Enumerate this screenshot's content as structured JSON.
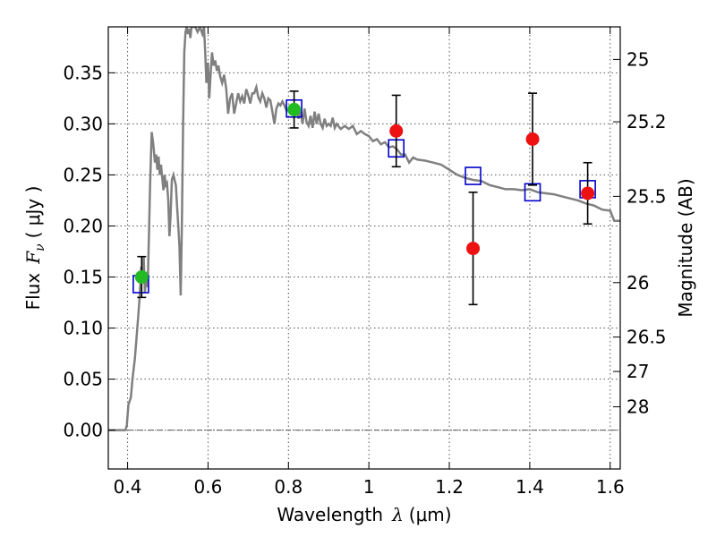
{
  "chart_data": {
    "type": "line",
    "xlabel_main": "Wavelength",
    "xlabel_symbol": "λ",
    "xlabel_unit": "(μm)",
    "ylabel_main": "Flux",
    "ylabel_symbol": "F",
    "ylabel_subscript": "ν",
    "ylabel_unit": "( μJy )",
    "ylabel_right": "Magnitude (AB)",
    "xlim": [
      0.352,
      1.625
    ],
    "ylim": [
      -0.038,
      0.395
    ],
    "x_ticks": [
      {
        "value": 0.4,
        "label": "0.4"
      },
      {
        "value": 0.6,
        "label": "0.6"
      },
      {
        "value": 0.8,
        "label": "0.8"
      },
      {
        "value": 1.0,
        "label": "1"
      },
      {
        "value": 1.2,
        "label": "1.2"
      },
      {
        "value": 1.4,
        "label": "1.4"
      },
      {
        "value": 1.6,
        "label": "1.6"
      }
    ],
    "y_ticks": [
      {
        "value": 0.0,
        "label": "0.00"
      },
      {
        "value": 0.05,
        "label": "0.05"
      },
      {
        "value": 0.1,
        "label": "0.10"
      },
      {
        "value": 0.15,
        "label": "0.15"
      },
      {
        "value": 0.2,
        "label": "0.20"
      },
      {
        "value": 0.25,
        "label": "0.25"
      },
      {
        "value": 0.3,
        "label": "0.30"
      },
      {
        "value": 0.35,
        "label": "0.35"
      }
    ],
    "right_ticks": [
      {
        "flux": 0.3631,
        "label": "25"
      },
      {
        "flux": 0.302,
        "label": "25.2"
      },
      {
        "flux": 0.229,
        "label": "25.5"
      },
      {
        "flux": 0.1445,
        "label": "26"
      },
      {
        "flux": 0.0912,
        "label": "26.5"
      },
      {
        "flux": 0.0575,
        "label": "27"
      },
      {
        "flux": 0.0229,
        "label": "28"
      }
    ],
    "grid": true,
    "series": [
      {
        "kind": "spectrum",
        "color": "#808080",
        "points": [
          [
            0.352,
            0.0
          ],
          [
            0.395,
            0.0
          ],
          [
            0.398,
            0.005
          ],
          [
            0.402,
            0.025
          ],
          [
            0.408,
            0.032
          ],
          [
            0.412,
            0.05
          ],
          [
            0.418,
            0.07
          ],
          [
            0.422,
            0.09
          ],
          [
            0.426,
            0.11
          ],
          [
            0.43,
            0.13
          ],
          [
            0.434,
            0.16
          ],
          [
            0.437,
            0.145
          ],
          [
            0.44,
            0.17
          ],
          [
            0.443,
            0.135
          ],
          [
            0.447,
            0.155
          ],
          [
            0.45,
            0.14
          ],
          [
            0.453,
            0.19
          ],
          [
            0.456,
            0.24
          ],
          [
            0.46,
            0.292
          ],
          [
            0.464,
            0.28
          ],
          [
            0.468,
            0.262
          ],
          [
            0.471,
            0.27
          ],
          [
            0.474,
            0.255
          ],
          [
            0.477,
            0.268
          ],
          [
            0.48,
            0.25
          ],
          [
            0.483,
            0.26
          ],
          [
            0.486,
            0.248
          ],
          [
            0.489,
            0.235
          ],
          [
            0.492,
            0.25
          ],
          [
            0.495,
            0.24
          ],
          [
            0.498,
            0.242
          ],
          [
            0.501,
            0.225
          ],
          [
            0.504,
            0.19
          ],
          [
            0.507,
            0.21
          ],
          [
            0.51,
            0.245
          ],
          [
            0.514,
            0.25
          ],
          [
            0.517,
            0.245
          ],
          [
            0.52,
            0.24
          ],
          [
            0.523,
            0.22
          ],
          [
            0.526,
            0.2
          ],
          [
            0.529,
            0.18
          ],
          [
            0.532,
            0.132
          ],
          [
            0.535,
            0.2
          ],
          [
            0.538,
            0.3
          ],
          [
            0.541,
            0.37
          ],
          [
            0.544,
            0.39
          ],
          [
            0.547,
            0.395
          ],
          [
            0.55,
            0.388
          ],
          [
            0.553,
            0.393
          ],
          [
            0.556,
            0.384
          ],
          [
            0.559,
            0.395
          ],
          [
            0.562,
            0.395
          ],
          [
            0.568,
            0.395
          ],
          [
            0.574,
            0.39
          ],
          [
            0.58,
            0.395
          ],
          [
            0.586,
            0.388
          ],
          [
            0.59,
            0.395
          ],
          [
            0.593,
            0.37
          ],
          [
            0.596,
            0.34
          ],
          [
            0.6,
            0.36
          ],
          [
            0.603,
            0.325
          ],
          [
            0.606,
            0.345
          ],
          [
            0.61,
            0.37
          ],
          [
            0.614,
            0.357
          ],
          [
            0.618,
            0.362
          ],
          [
            0.622,
            0.352
          ],
          [
            0.626,
            0.357
          ],
          [
            0.63,
            0.347
          ],
          [
            0.635,
            0.34
          ],
          [
            0.64,
            0.348
          ],
          [
            0.645,
            0.335
          ],
          [
            0.65,
            0.31
          ],
          [
            0.655,
            0.325
          ],
          [
            0.66,
            0.33
          ],
          [
            0.665,
            0.31
          ],
          [
            0.67,
            0.32
          ],
          [
            0.675,
            0.33
          ],
          [
            0.68,
            0.322
          ],
          [
            0.685,
            0.327
          ],
          [
            0.69,
            0.32
          ],
          [
            0.695,
            0.334
          ],
          [
            0.7,
            0.328
          ],
          [
            0.705,
            0.32
          ],
          [
            0.71,
            0.33
          ],
          [
            0.715,
            0.33
          ],
          [
            0.72,
            0.336
          ],
          [
            0.725,
            0.326
          ],
          [
            0.73,
            0.322
          ],
          [
            0.735,
            0.33
          ],
          [
            0.74,
            0.325
          ],
          [
            0.745,
            0.316
          ],
          [
            0.75,
            0.325
          ],
          [
            0.755,
            0.323
          ],
          [
            0.76,
            0.312
          ],
          [
            0.765,
            0.3
          ],
          [
            0.77,
            0.315
          ],
          [
            0.775,
            0.32
          ],
          [
            0.78,
            0.318
          ],
          [
            0.785,
            0.322
          ],
          [
            0.79,
            0.318
          ],
          [
            0.795,
            0.313
          ],
          [
            0.8,
            0.314
          ],
          [
            0.805,
            0.311
          ],
          [
            0.81,
            0.316
          ],
          [
            0.815,
            0.31
          ],
          [
            0.82,
            0.318
          ],
          [
            0.825,
            0.305
          ],
          [
            0.83,
            0.312
          ],
          [
            0.835,
            0.3
          ],
          [
            0.84,
            0.315
          ],
          [
            0.845,
            0.302
          ],
          [
            0.85,
            0.298
          ],
          [
            0.855,
            0.308
          ],
          [
            0.86,
            0.296
          ],
          [
            0.865,
            0.312
          ],
          [
            0.87,
            0.3
          ],
          [
            0.875,
            0.31
          ],
          [
            0.88,
            0.3
          ],
          [
            0.885,
            0.296
          ],
          [
            0.89,
            0.305
          ],
          [
            0.895,
            0.298
          ],
          [
            0.9,
            0.3
          ],
          [
            0.905,
            0.298
          ],
          [
            0.91,
            0.306
          ],
          [
            0.915,
            0.296
          ],
          [
            0.92,
            0.3
          ],
          [
            0.93,
            0.295
          ],
          [
            0.94,
            0.298
          ],
          [
            0.95,
            0.295
          ],
          [
            0.96,
            0.298
          ],
          [
            0.97,
            0.29
          ],
          [
            0.98,
            0.293
          ],
          [
            0.99,
            0.29
          ],
          [
            1.0,
            0.288
          ],
          [
            1.01,
            0.283
          ],
          [
            1.02,
            0.285
          ],
          [
            1.03,
            0.28
          ],
          [
            1.04,
            0.282
          ],
          [
            1.05,
            0.277
          ],
          [
            1.06,
            0.278
          ],
          [
            1.07,
            0.275
          ],
          [
            1.08,
            0.27
          ],
          [
            1.09,
            0.27
          ],
          [
            1.1,
            0.262
          ],
          [
            1.11,
            0.267
          ],
          [
            1.12,
            0.265
          ],
          [
            1.14,
            0.264
          ],
          [
            1.16,
            0.262
          ],
          [
            1.18,
            0.26
          ],
          [
            1.2,
            0.255
          ],
          [
            1.22,
            0.25
          ],
          [
            1.24,
            0.247
          ],
          [
            1.26,
            0.245
          ],
          [
            1.28,
            0.244
          ],
          [
            1.3,
            0.24
          ],
          [
            1.32,
            0.238
          ],
          [
            1.34,
            0.236
          ],
          [
            1.36,
            0.236
          ],
          [
            1.38,
            0.235
          ],
          [
            1.4,
            0.236
          ],
          [
            1.42,
            0.233
          ],
          [
            1.44,
            0.232
          ],
          [
            1.46,
            0.231
          ],
          [
            1.48,
            0.229
          ],
          [
            1.5,
            0.227
          ],
          [
            1.52,
            0.225
          ],
          [
            1.54,
            0.222
          ],
          [
            1.56,
            0.22
          ],
          [
            1.58,
            0.216
          ],
          [
            1.6,
            0.215
          ],
          [
            1.61,
            0.205
          ],
          [
            1.625,
            0.205
          ]
        ]
      },
      {
        "kind": "model_photometry",
        "marker": "open-square",
        "color": "#0000cc",
        "points": [
          {
            "x": 0.433,
            "y": 0.143
          },
          {
            "x": 0.814,
            "y": 0.315
          },
          {
            "x": 1.068,
            "y": 0.276
          },
          {
            "x": 1.259,
            "y": 0.249
          },
          {
            "x": 1.407,
            "y": 0.233
          },
          {
            "x": 1.544,
            "y": 0.236
          }
        ]
      },
      {
        "kind": "observed_photometry_optical",
        "marker": "filled-circle",
        "color": "#22bb22",
        "points": [
          {
            "x": 0.435,
            "y": 0.15,
            "err": 0.02
          },
          {
            "x": 0.814,
            "y": 0.314,
            "err": 0.018
          }
        ]
      },
      {
        "kind": "observed_photometry_nir",
        "marker": "filled-circle",
        "color": "#ee1111",
        "points": [
          {
            "x": 1.068,
            "y": 0.293,
            "err": 0.035
          },
          {
            "x": 1.259,
            "y": 0.178,
            "err": 0.055
          },
          {
            "x": 1.407,
            "y": 0.285,
            "err": 0.045
          },
          {
            "x": 1.544,
            "y": 0.232,
            "err": 0.03
          }
        ]
      }
    ]
  }
}
